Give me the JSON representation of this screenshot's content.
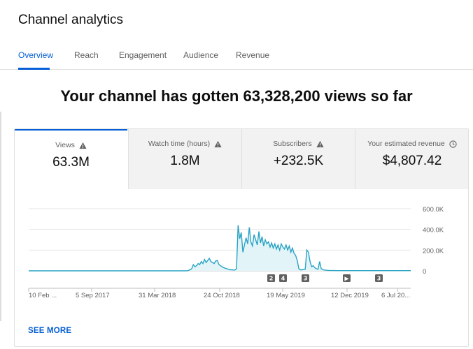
{
  "header": {
    "title": "Channel analytics"
  },
  "tabs": [
    {
      "label": "Overview",
      "active": true
    },
    {
      "label": "Reach"
    },
    {
      "label": "Engagement"
    },
    {
      "label": "Audience"
    },
    {
      "label": "Revenue"
    }
  ],
  "headline": "Your channel has gotten 63,328,200 views so far",
  "metrics": [
    {
      "label": "Views",
      "value": "63.3M",
      "icon": "warning-icon",
      "active": true
    },
    {
      "label": "Watch time (hours)",
      "value": "1.8M",
      "icon": "warning-icon"
    },
    {
      "label": "Subscribers",
      "value": "+232.5K",
      "icon": "warning-icon"
    },
    {
      "label": "Your estimated revenue",
      "value": "$4,807.42",
      "icon": "clock-icon"
    }
  ],
  "see_more": "SEE MORE",
  "colors": {
    "accent": "#065fd4",
    "line": "#29a3c3",
    "fill": "#e3f4f8"
  },
  "chart_data": {
    "type": "area",
    "x_ticks": [
      "10 Feb ...",
      "5 Sep 2017",
      "31 Mar 2018",
      "24 Oct 2018",
      "19 May 2019",
      "12 Dec 2019",
      "6 Jul 20..."
    ],
    "y_ticks": [
      "600.0K",
      "400.0K",
      "200.0K",
      "0"
    ],
    "ylim": [
      0,
      600000
    ],
    "markers": [
      "2",
      "4",
      "3",
      "▶",
      "3"
    ],
    "series": [
      {
        "values": [
          0,
          0,
          0,
          0,
          0,
          0,
          0,
          0,
          0,
          0,
          0,
          0,
          0,
          0,
          0,
          0,
          0,
          0,
          0,
          0,
          0,
          0,
          0,
          0,
          0,
          0,
          0,
          0,
          0,
          0,
          0,
          0,
          0,
          0,
          0,
          0,
          0,
          0,
          0,
          0,
          0,
          0,
          0,
          0,
          0,
          0,
          0,
          0,
          0,
          0,
          0,
          0,
          0,
          0,
          0,
          0,
          0,
          0,
          0,
          0,
          0,
          0,
          0,
          0,
          0,
          0,
          0,
          0,
          0,
          0,
          0,
          0,
          0,
          0,
          0,
          0,
          0,
          0,
          0,
          0,
          0,
          0,
          0,
          0,
          0,
          0,
          0,
          0,
          0,
          0,
          0,
          0,
          0,
          0,
          0,
          0,
          0,
          0,
          0,
          0,
          5000,
          10000,
          20000,
          60000,
          40000,
          50000,
          70000,
          60000,
          90000,
          70000,
          110000,
          80000,
          100000,
          120000,
          90000,
          80000,
          70000,
          95000,
          100000,
          60000,
          50000,
          40000,
          30000,
          25000,
          20000,
          15000,
          10000,
          10000,
          8000,
          8000,
          20000,
          440000,
          310000,
          370000,
          180000,
          250000,
          320000,
          260000,
          420000,
          280000,
          240000,
          350000,
          300000,
          250000,
          380000,
          270000,
          330000,
          240000,
          300000,
          260000,
          280000,
          230000,
          270000,
          220000,
          260000,
          210000,
          250000,
          200000,
          260000,
          230000,
          210000,
          250000,
          200000,
          240000,
          180000,
          220000,
          170000,
          150000,
          100000,
          20000,
          10000,
          10000,
          12000,
          15000,
          200000,
          180000,
          90000,
          40000,
          50000,
          30000,
          20000,
          15000,
          90000,
          20000,
          10000,
          8000,
          6000,
          5000,
          4000,
          3000,
          3000,
          3000,
          2000,
          2000,
          2000,
          2000,
          2000,
          2000,
          2000,
          2000,
          2000,
          2000,
          2000,
          2000,
          2000,
          2000,
          2000,
          2000,
          2000,
          2000,
          2000,
          2000,
          2000,
          2000,
          2000,
          2000,
          2000,
          2000,
          2000,
          2000,
          2000,
          2000,
          2000,
          2000,
          2000,
          2000,
          2000,
          2000,
          2000,
          2000,
          2000,
          2000,
          2000,
          2000,
          2000,
          2000,
          2000,
          2000,
          2000,
          2000
        ]
      }
    ]
  }
}
